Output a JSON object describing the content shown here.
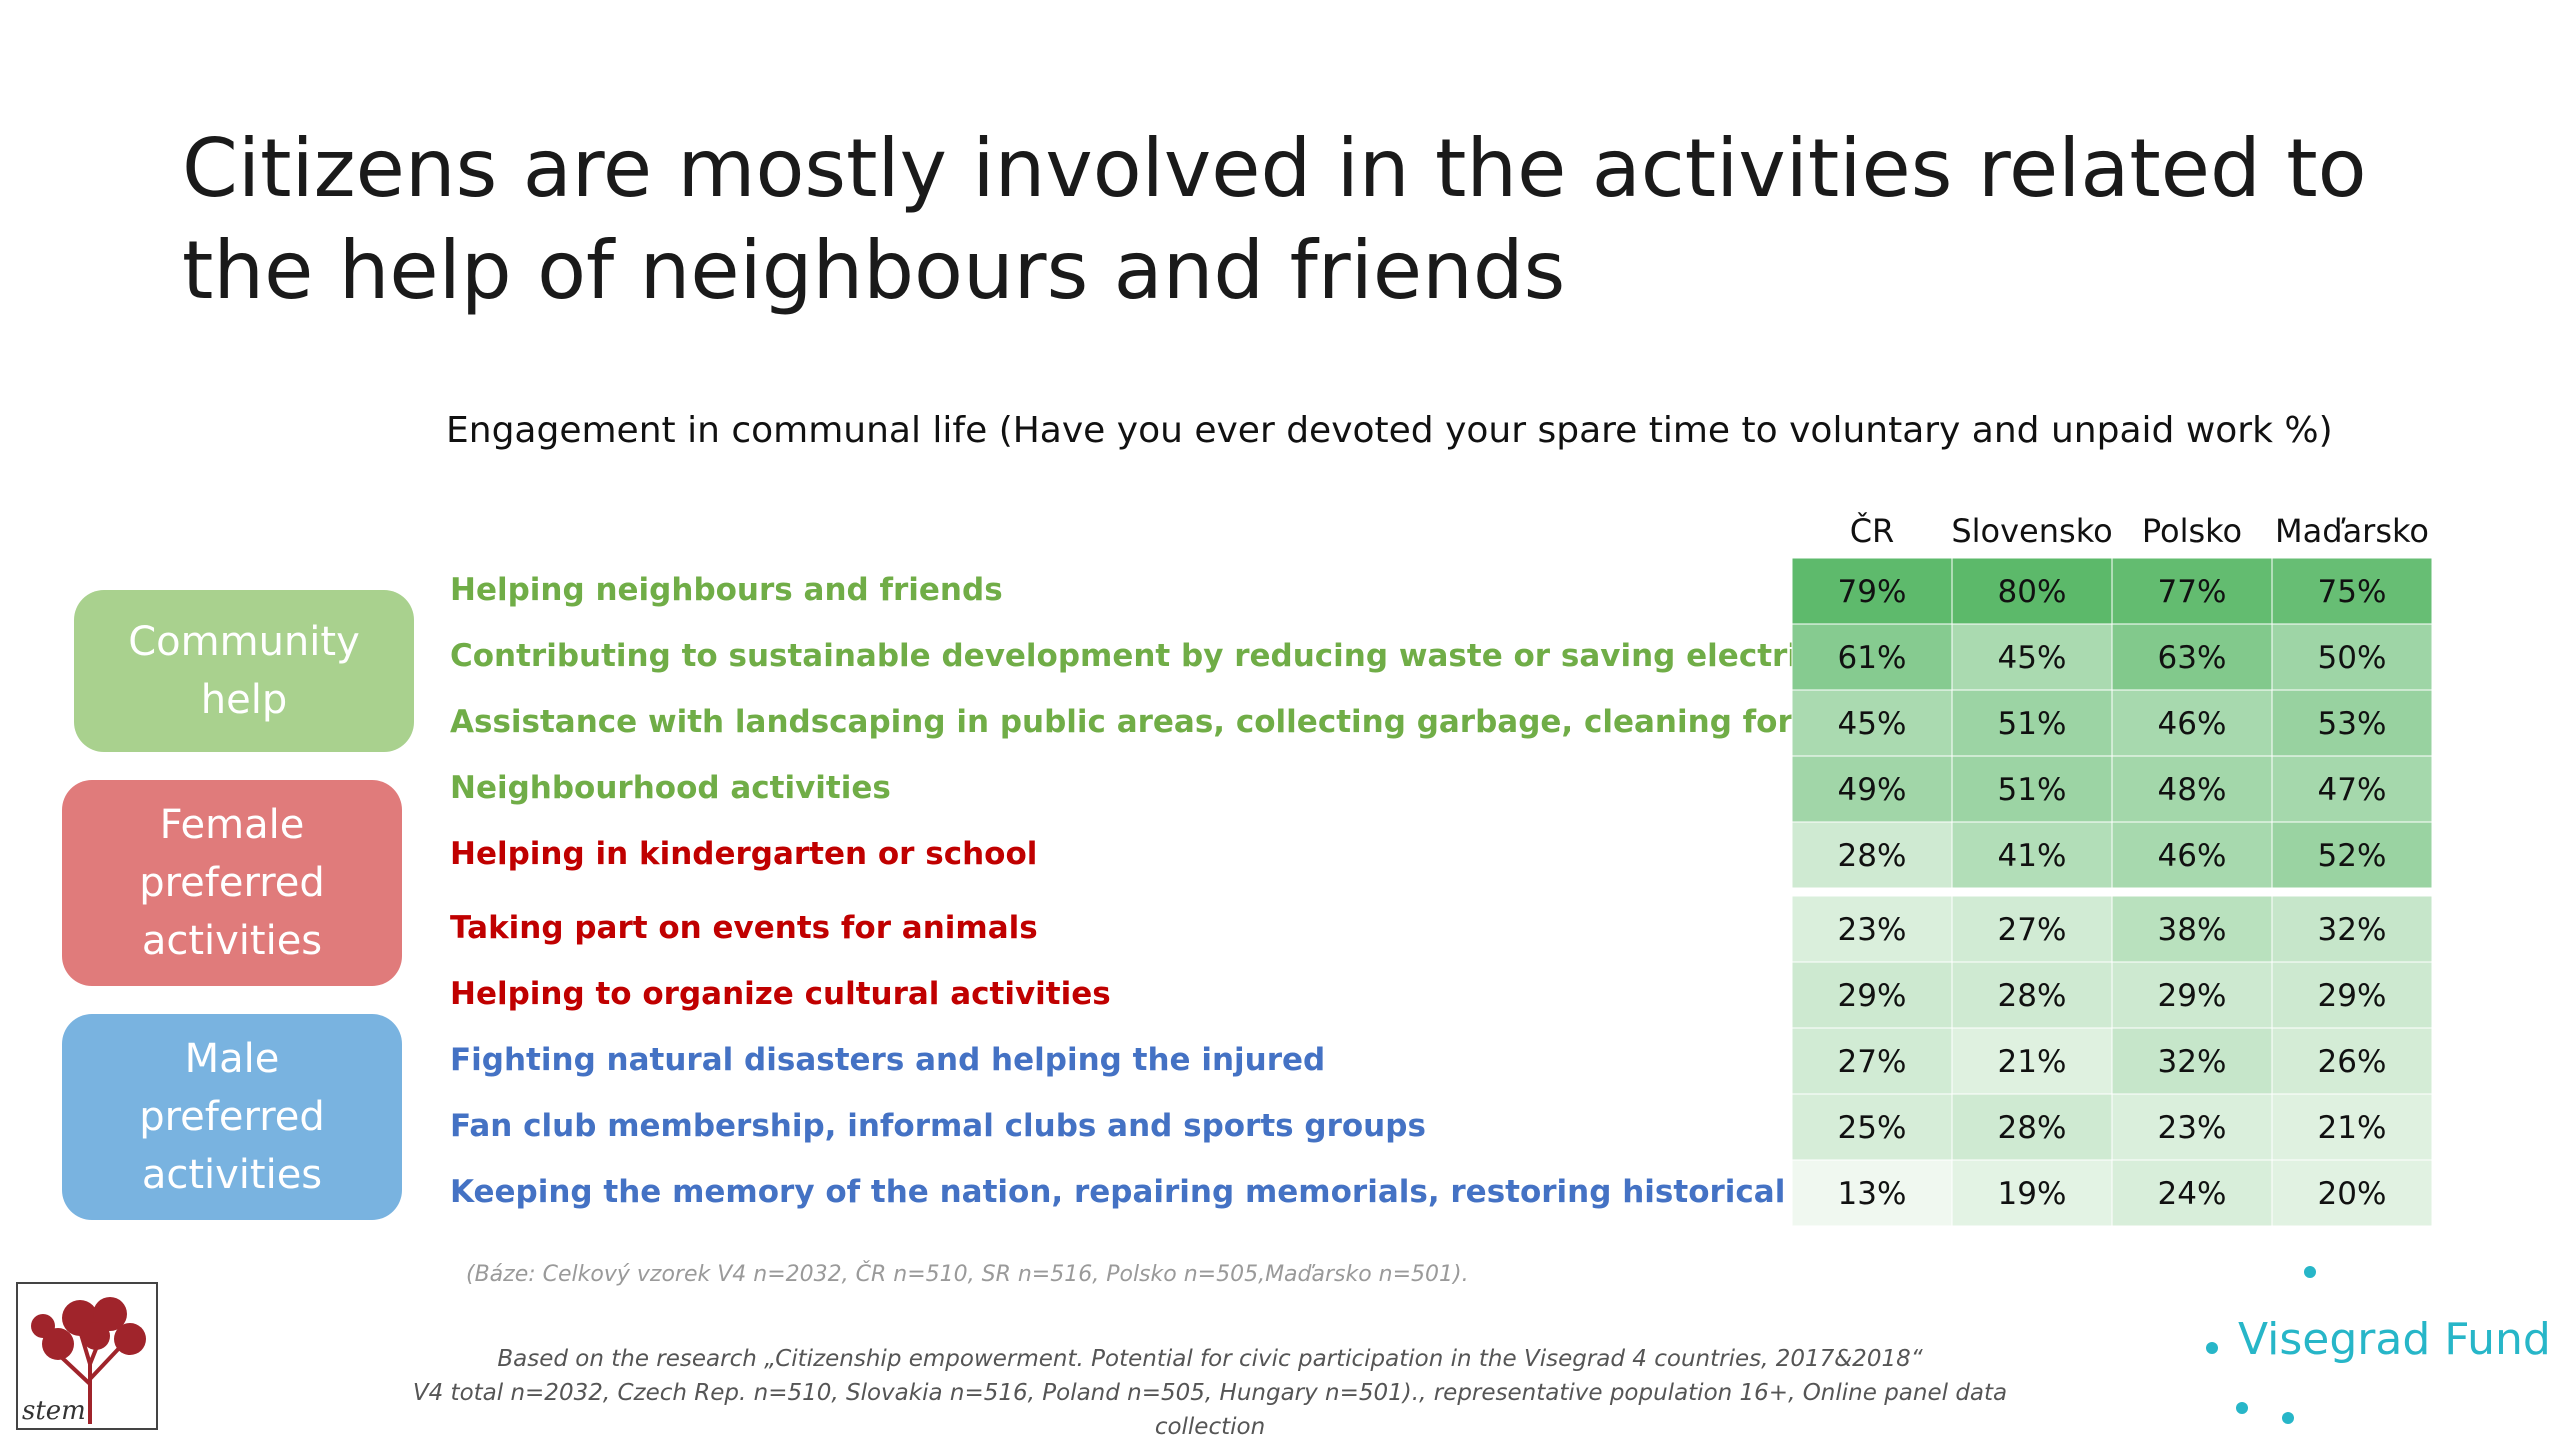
{
  "slide": {
    "title_line1": "Citizens are mostly involved in the activities related to",
    "title_line2": "the help of neighbours and friends",
    "subtitle": "Engagement in communal life (Have you ever devoted your spare time to voluntary and unpaid work %)"
  },
  "groups": [
    {
      "label": "Community\nhelp",
      "color": "#a9d18e"
    },
    {
      "label": "Female\npreferred\nactivities",
      "color": "#e07b7b"
    },
    {
      "label": "Male\npreferred\nactivities",
      "color": "#79b3e0"
    }
  ],
  "colors": {
    "community": "#70ad47",
    "female": "#c00000",
    "male": "#4472c4",
    "heat_low": "#f7fbf6",
    "heat_high": "#5cb96a"
  },
  "chart_data": {
    "type": "table",
    "title": "Engagement in communal life (Have you ever devoted your spare time to voluntary and unpaid work %)",
    "columns": [
      "ČR",
      "Slovensko",
      "Polsko",
      "Maďarsko"
    ],
    "rows": [
      {
        "label": "Helping neighbours and friends",
        "group": "community",
        "values": [
          79,
          80,
          77,
          75
        ]
      },
      {
        "label": "Contributing to sustainable development by reducing waste or saving electricity",
        "group": "community",
        "values": [
          61,
          45,
          63,
          50
        ]
      },
      {
        "label": "Assistance with landscaping in public areas, collecting garbage, cleaning forests",
        "group": "community",
        "values": [
          45,
          51,
          46,
          53
        ]
      },
      {
        "label": "Neighbourhood activities",
        "group": "community",
        "values": [
          49,
          51,
          48,
          47
        ]
      },
      {
        "label": "Helping in kindergarten or school",
        "group": "female",
        "values": [
          28,
          41,
          46,
          52
        ]
      },
      {
        "label": "Taking part on events for animals",
        "group": "female",
        "values": [
          23,
          27,
          38,
          32
        ]
      },
      {
        "label": "Helping to organize cultural activities",
        "group": "female",
        "values": [
          29,
          28,
          29,
          29
        ]
      },
      {
        "label": "Fighting natural disasters and helping the injured",
        "group": "male",
        "values": [
          27,
          21,
          32,
          26
        ]
      },
      {
        "label": "Fan club membership, informal clubs and sports groups",
        "group": "male",
        "values": [
          25,
          28,
          23,
          21
        ]
      },
      {
        "label": "Keeping the memory of the nation, repairing memorials, restoring historical places",
        "group": "male",
        "values": [
          13,
          19,
          24,
          20
        ]
      }
    ],
    "value_suffix": "%"
  },
  "notes": {
    "base": "(Báze: Celkový vzorek V4 n=2032, ČR n=510, SR n=516, Polsko n=505,Maďarsko n=501).",
    "source_line1": "Based on the research  „Citizenship empowerment. Potential for civic participation in the Visegrad 4 countries, 2017&2018“",
    "source_line2": "V4 total n=2032, Czech Rep. n=510, Slovakia n=516, Poland n=505, Hungary n=501)., representative population 16+, Online panel data collection"
  },
  "logos": {
    "stem": "stem",
    "visegrad": "Visegrad Fund"
  }
}
